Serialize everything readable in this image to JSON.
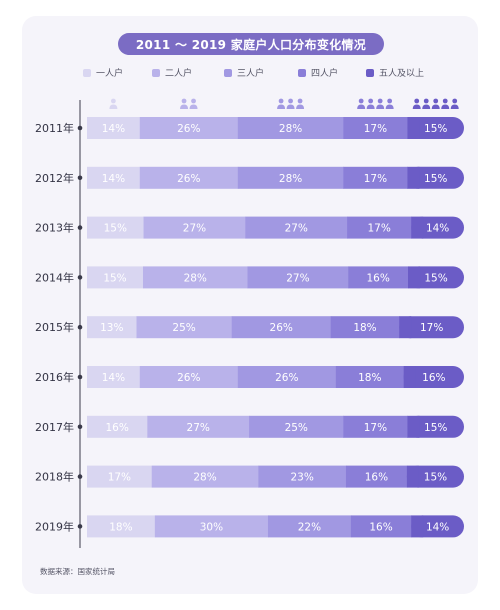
{
  "chart_data": {
    "type": "bar",
    "orientation": "horizontal",
    "stacked": true,
    "title": "2011 ～ 2019 家庭户人口分布变化情况",
    "categories": [
      "2011年",
      "2012年",
      "2013年",
      "2014年",
      "2015年",
      "2016年",
      "2017年",
      "2018年",
      "2019年"
    ],
    "series": [
      {
        "name": "一人户",
        "color": "#d9d6f1",
        "values": [
          14,
          14,
          15,
          15,
          13,
          14,
          16,
          17,
          18
        ]
      },
      {
        "name": "二人户",
        "color": "#b9b2ea",
        "values": [
          26,
          26,
          27,
          28,
          25,
          26,
          27,
          28,
          30
        ]
      },
      {
        "name": "三人户",
        "color": "#a198e2",
        "values": [
          28,
          28,
          27,
          27,
          26,
          26,
          25,
          23,
          22
        ]
      },
      {
        "name": "四人户",
        "color": "#8a7ed8",
        "values": [
          17,
          17,
          17,
          16,
          18,
          18,
          17,
          16,
          16
        ]
      },
      {
        "name": "五人及以上",
        "color": "#6b5cc6",
        "values": [
          15,
          15,
          14,
          15,
          17,
          16,
          15,
          15,
          14
        ]
      }
    ],
    "value_suffix": "%",
    "legend_position": "top",
    "grid": false
  },
  "source_note": "数据来源：国家统计局",
  "colors": {
    "title_background": "#7b6cc4",
    "card_background": "#f5f4fa",
    "axis_line": "#3a3a4a"
  }
}
